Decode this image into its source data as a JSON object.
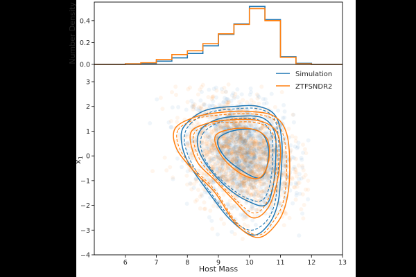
{
  "chart_data": [
    {
      "type": "histogram",
      "ylabel": "Number Density",
      "xlim": [
        5,
        13
      ],
      "ylim": [
        0,
        0.57
      ],
      "yticks": [
        "0.0",
        "0.2",
        "0.4"
      ],
      "bin_edges": [
        6.0,
        6.5,
        7.0,
        7.5,
        8.0,
        8.5,
        9.0,
        9.5,
        10.0,
        10.5,
        11.0,
        11.5,
        12.0
      ],
      "series": [
        {
          "name": "Simulation",
          "color": "#1f77b4",
          "values": [
            0.005,
            0.01,
            0.03,
            0.06,
            0.1,
            0.17,
            0.275,
            0.37,
            0.53,
            0.41,
            0.07,
            0.01
          ]
        },
        {
          "name": "ZTFSNDR2",
          "color": "#ff7f0e",
          "values": [
            0.005,
            0.015,
            0.045,
            0.09,
            0.125,
            0.19,
            0.28,
            0.365,
            0.51,
            0.4,
            0.065,
            0.005
          ]
        }
      ]
    },
    {
      "type": "scatter",
      "xlabel": "Host Mass",
      "ylabel": "x1",
      "xlim": [
        5,
        13
      ],
      "ylim": [
        -4,
        3.7
      ],
      "xticks": [
        "6",
        "7",
        "8",
        "9",
        "10",
        "11",
        "12",
        "13"
      ],
      "yticks": [
        "−4",
        "−3",
        "−2",
        "−1",
        "0",
        "1",
        "2",
        "3"
      ],
      "legend": {
        "placement": "top-right",
        "entries": [
          "Simulation",
          "ZTFSNDR2"
        ]
      },
      "series": [
        {
          "name": "Simulation",
          "color": "#1f77b4",
          "center": [
            9.8,
            0.1
          ],
          "sd": [
            0.8,
            1.05
          ],
          "alpha": 0.07
        },
        {
          "name": "ZTFSNDR2",
          "color": "#ff7f0e",
          "center": [
            9.7,
            0.05
          ],
          "sd": [
            0.85,
            1.1
          ],
          "alpha": 0.08
        }
      ],
      "contours": [
        {
          "series": "Simulation",
          "dashed": false,
          "levels": [
            [
              [
                8.0,
                1.35
              ],
              [
                8.6,
                1.85
              ],
              [
                9.5,
                2.0
              ],
              [
                10.3,
                2.0
              ],
              [
                10.85,
                1.6
              ],
              [
                11.05,
                0.5
              ],
              [
                11.0,
                -1.0
              ],
              [
                10.9,
                -2.0
              ],
              [
                10.6,
                -2.8
              ],
              [
                10.1,
                -3.2
              ],
              [
                9.4,
                -2.6
              ],
              [
                8.7,
                -1.5
              ],
              [
                8.0,
                -0.2
              ],
              [
                7.8,
                0.8
              ]
            ],
            [
              [
                8.4,
                1.0
              ],
              [
                8.9,
                1.45
              ],
              [
                9.6,
                1.6
              ],
              [
                10.4,
                1.55
              ],
              [
                10.8,
                1.0
              ],
              [
                10.85,
                0.0
              ],
              [
                10.75,
                -1.3
              ],
              [
                10.5,
                -2.0
              ],
              [
                9.9,
                -1.8
              ],
              [
                9.3,
                -1.3
              ],
              [
                8.7,
                -0.5
              ],
              [
                8.35,
                0.3
              ]
            ],
            [
              [
                9.0,
                0.7
              ],
              [
                9.6,
                1.05
              ],
              [
                10.3,
                1.0
              ],
              [
                10.6,
                0.4
              ],
              [
                10.55,
                -0.5
              ],
              [
                10.3,
                -0.9
              ],
              [
                9.7,
                -0.55
              ],
              [
                9.15,
                0.05
              ]
            ]
          ]
        },
        {
          "series": "Simulation",
          "dashed": true,
          "levels": [
            [
              [
                8.1,
                1.3
              ],
              [
                8.7,
                1.75
              ],
              [
                9.5,
                1.9
              ],
              [
                10.3,
                1.9
              ],
              [
                10.8,
                1.5
              ],
              [
                10.95,
                0.4
              ],
              [
                10.9,
                -1.0
              ],
              [
                10.8,
                -2.0
              ],
              [
                10.5,
                -2.7
              ],
              [
                10.0,
                -3.0
              ],
              [
                9.4,
                -2.5
              ],
              [
                8.7,
                -1.4
              ],
              [
                8.1,
                -0.2
              ],
              [
                7.9,
                0.7
              ]
            ],
            [
              [
                8.5,
                0.9
              ],
              [
                9.0,
                1.35
              ],
              [
                9.6,
                1.5
              ],
              [
                10.3,
                1.45
              ],
              [
                10.7,
                0.9
              ],
              [
                10.75,
                -0.1
              ],
              [
                10.65,
                -1.2
              ],
              [
                10.4,
                -1.8
              ],
              [
                9.9,
                -1.7
              ],
              [
                9.3,
                -1.2
              ],
              [
                8.75,
                -0.5
              ],
              [
                8.45,
                0.25
              ]
            ]
          ]
        },
        {
          "series": "ZTFSNDR2",
          "dashed": false,
          "levels": [
            [
              [
                7.6,
                1.1
              ],
              [
                8.2,
                1.55
              ],
              [
                9.0,
                1.75
              ],
              [
                10.0,
                1.8
              ],
              [
                10.8,
                1.6
              ],
              [
                11.2,
                0.9
              ],
              [
                11.3,
                -0.5
              ],
              [
                11.2,
                -1.8
              ],
              [
                10.9,
                -2.7
              ],
              [
                10.3,
                -3.3
              ],
              [
                9.6,
                -2.8
              ],
              [
                8.9,
                -1.5
              ],
              [
                8.2,
                -0.6
              ],
              [
                7.65,
                0.3
              ]
            ],
            [
              [
                8.1,
                0.9
              ],
              [
                8.6,
                1.3
              ],
              [
                9.3,
                1.45
              ],
              [
                10.2,
                1.45
              ],
              [
                10.8,
                1.1
              ],
              [
                11.0,
                0.3
              ],
              [
                10.9,
                -1.0
              ],
              [
                10.6,
                -2.1
              ],
              [
                10.1,
                -2.5
              ],
              [
                9.5,
                -1.8
              ],
              [
                8.9,
                -1.0
              ],
              [
                8.3,
                -0.2
              ]
            ],
            [
              [
                8.9,
                0.8
              ],
              [
                9.5,
                1.1
              ],
              [
                10.2,
                1.05
              ],
              [
                10.6,
                0.6
              ],
              [
                10.6,
                -0.3
              ],
              [
                10.3,
                -0.9
              ],
              [
                9.7,
                -0.7
              ],
              [
                9.1,
                0.0
              ]
            ]
          ]
        },
        {
          "series": "ZTFSNDR2",
          "dashed": true,
          "levels": [
            [
              [
                7.7,
                1.05
              ],
              [
                8.3,
                1.5
              ],
              [
                9.0,
                1.65
              ],
              [
                10.0,
                1.7
              ],
              [
                10.75,
                1.5
              ],
              [
                11.1,
                0.8
              ],
              [
                11.2,
                -0.5
              ],
              [
                11.1,
                -1.8
              ],
              [
                10.8,
                -2.6
              ],
              [
                10.3,
                -3.2
              ],
              [
                9.6,
                -2.7
              ],
              [
                8.9,
                -1.4
              ],
              [
                8.2,
                -0.5
              ],
              [
                7.75,
                0.3
              ]
            ],
            [
              [
                8.2,
                0.85
              ],
              [
                8.7,
                1.25
              ],
              [
                9.3,
                1.35
              ],
              [
                10.2,
                1.35
              ],
              [
                10.7,
                1.0
              ],
              [
                10.9,
                0.2
              ],
              [
                10.8,
                -1.0
              ],
              [
                10.5,
                -2.0
              ],
              [
                10.1,
                -2.3
              ],
              [
                9.5,
                -1.7
              ],
              [
                8.9,
                -0.9
              ],
              [
                8.4,
                -0.15
              ]
            ]
          ]
        }
      ]
    }
  ]
}
